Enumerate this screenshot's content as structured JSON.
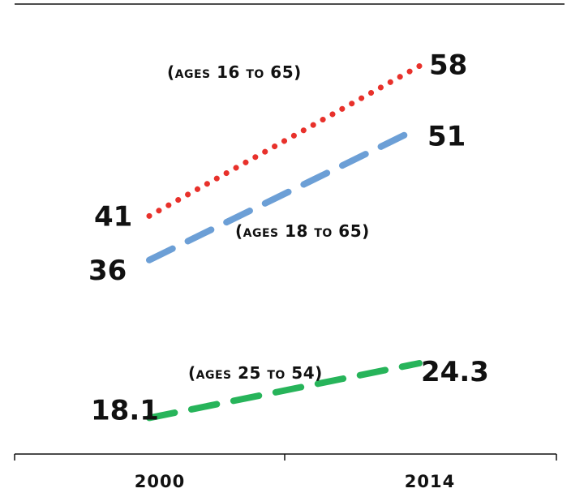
{
  "chart_data": {
    "type": "line",
    "categories": [
      "2000",
      "2014"
    ],
    "series": [
      {
        "name": "(ages 16 to 65)",
        "values": [
          41,
          58
        ],
        "color": "#e8312b",
        "style": "dotted"
      },
      {
        "name": "(ages 18 to 65)",
        "values": [
          36,
          51
        ],
        "color": "#6c9fd6",
        "style": "dashed"
      },
      {
        "name": "(ages 25 to 54)",
        "values": [
          18.1,
          24.3
        ],
        "color": "#27b45a",
        "style": "dashed"
      }
    ],
    "value_labels": [
      [
        "41",
        "58"
      ],
      [
        "36",
        "51"
      ],
      [
        "18.1",
        "24.3"
      ]
    ],
    "title": "",
    "xlabel": "",
    "ylabel": "",
    "ylim": [
      14,
      62
    ],
    "grid": false,
    "legend": "inline annotations"
  }
}
